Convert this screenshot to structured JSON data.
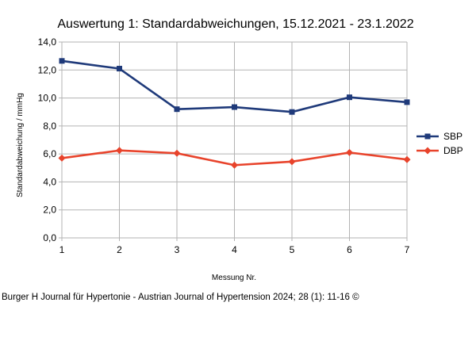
{
  "chart_data": {
    "type": "line",
    "title": "Auswertung 1: Standardabweichungen, 15.12.2021 - 23.1.2022",
    "xlabel": "Messung Nr.",
    "ylabel": "Standardabweichung / mmHg",
    "categories": [
      "1",
      "2",
      "3",
      "4",
      "5",
      "6",
      "7"
    ],
    "ylim": [
      0,
      14
    ],
    "yticks": [
      "0,0",
      "2,0",
      "4,0",
      "6,0",
      "8,0",
      "10,0",
      "12,0",
      "14,0"
    ],
    "grid": true,
    "legend_position": "right",
    "series": [
      {
        "name": "SBP",
        "color": "#1f3a7a",
        "marker": "square",
        "values": [
          12.65,
          12.1,
          9.2,
          9.35,
          9.0,
          10.05,
          9.7
        ]
      },
      {
        "name": "DBP",
        "color": "#e8432b",
        "marker": "diamond",
        "values": [
          5.7,
          6.25,
          6.05,
          5.2,
          5.45,
          6.1,
          5.6
        ]
      }
    ]
  },
  "caption": "Burger H Journal für Hypertonie - Austrian Journal of Hypertension 2024; 28 (1): 11-16 ©"
}
